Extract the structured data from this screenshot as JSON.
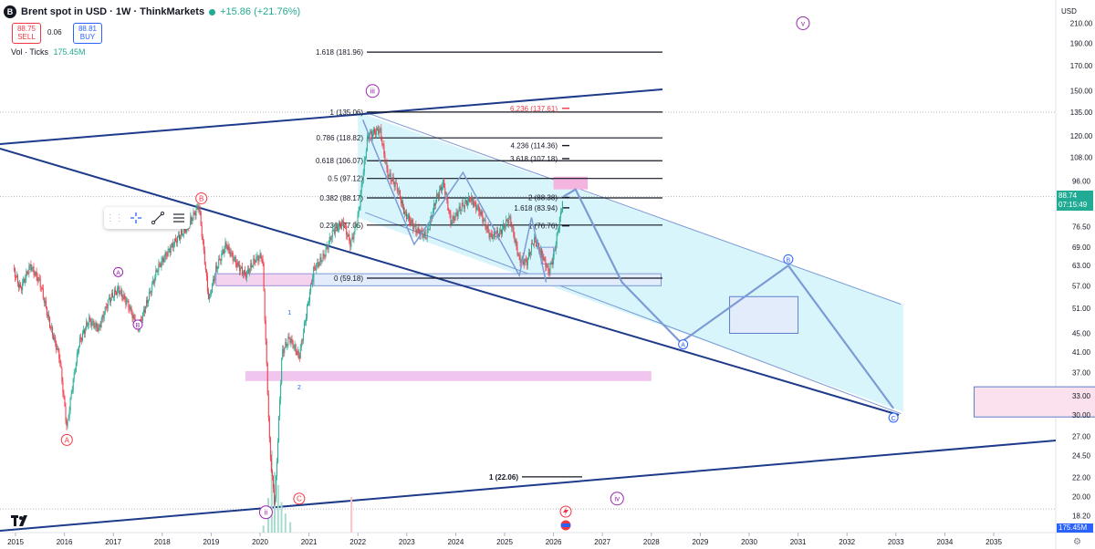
{
  "header": {
    "logo_char": "B",
    "title": "Brent spot in USD · 1W · ThinkMarkets",
    "change": "+15.86 (+21.76%)",
    "sell_price": "88.75",
    "sell_label": "SELL",
    "spread": "0.06",
    "buy_price": "88.81",
    "buy_label": "BUY",
    "vol_label": "Vol · Ticks",
    "vol_value": "175.45M"
  },
  "colors": {
    "up": "#22ab94",
    "down": "#f23645",
    "trendline": "#1e3a8a",
    "channel_fill": "#ccf1fb",
    "channel_line": "#5b7fc9",
    "projection": "#7b9bd4",
    "purple": "#9c27b0",
    "box_pink": "#fbe1ee",
    "box_blue": "#e3ecfb"
  },
  "price_axis": {
    "unit": "USD",
    "ticks": [
      210,
      190,
      170,
      150,
      135,
      120,
      108,
      96,
      86,
      76.5,
      69,
      63,
      57,
      51,
      45,
      41,
      37,
      33,
      30,
      27,
      24.5,
      22,
      20,
      18.2
    ],
    "last_price": "88.74",
    "countdown": "07:15:49",
    "vol_tag": "175.45M"
  },
  "chart_data": {
    "type": "candlestick",
    "symbol": "Brent spot in USD",
    "interval": "1W",
    "x_ticks": [
      "2015",
      "2016",
      "2017",
      "2018",
      "2019",
      "2020",
      "2021",
      "2022",
      "2023",
      "2024",
      "2025",
      "2026",
      "2027",
      "2028",
      "2029",
      "2030",
      "2031",
      "2032",
      "2033",
      "2034",
      "2035"
    ],
    "price_path": [
      [
        2014.95,
        62
      ],
      [
        2015.1,
        56
      ],
      [
        2015.3,
        63
      ],
      [
        2015.5,
        58
      ],
      [
        2015.7,
        47
      ],
      [
        2015.9,
        40
      ],
      [
        2016.05,
        28
      ],
      [
        2016.15,
        34
      ],
      [
        2016.3,
        43
      ],
      [
        2016.5,
        48
      ],
      [
        2016.7,
        46
      ],
      [
        2016.9,
        53
      ],
      [
        2017.1,
        56
      ],
      [
        2017.3,
        52
      ],
      [
        2017.5,
        46
      ],
      [
        2017.7,
        53
      ],
      [
        2017.9,
        62
      ],
      [
        2018.1,
        67
      ],
      [
        2018.3,
        72
      ],
      [
        2018.5,
        76
      ],
      [
        2018.75,
        85
      ],
      [
        2018.95,
        53
      ],
      [
        2019.1,
        62
      ],
      [
        2019.3,
        70
      ],
      [
        2019.5,
        64
      ],
      [
        2019.7,
        60
      ],
      [
        2019.9,
        65
      ],
      [
        2020.05,
        66
      ],
      [
        2020.2,
        25
      ],
      [
        2020.3,
        19
      ],
      [
        2020.45,
        41
      ],
      [
        2020.6,
        44
      ],
      [
        2020.8,
        40
      ],
      [
        2020.95,
        50
      ],
      [
        2021.1,
        62
      ],
      [
        2021.3,
        66
      ],
      [
        2021.5,
        75
      ],
      [
        2021.7,
        78
      ],
      [
        2021.85,
        70
      ],
      [
        2022.0,
        80
      ],
      [
        2022.2,
        120
      ],
      [
        2022.45,
        124
      ],
      [
        2022.6,
        100
      ],
      [
        2022.8,
        93
      ],
      [
        2022.95,
        82
      ],
      [
        2023.2,
        75
      ],
      [
        2023.4,
        73
      ],
      [
        2023.6,
        88
      ],
      [
        2023.75,
        95
      ],
      [
        2023.9,
        78
      ],
      [
        2024.1,
        84
      ],
      [
        2024.3,
        88
      ],
      [
        2024.5,
        82
      ],
      [
        2024.7,
        73
      ],
      [
        2024.9,
        74
      ],
      [
        2025.1,
        80
      ],
      [
        2025.3,
        65
      ],
      [
        2025.45,
        64
      ],
      [
        2025.6,
        72
      ],
      [
        2025.75,
        67
      ],
      [
        2025.9,
        61
      ],
      [
        2026.0,
        66
      ],
      [
        2026.1,
        76
      ],
      [
        2026.2,
        88.74
      ]
    ],
    "fib_retracement": [
      {
        "label": "1.618 (181.96)",
        "price": 181.96
      },
      {
        "label": "1 (135.06)",
        "price": 135.06
      },
      {
        "label": "0.786 (118.82)",
        "price": 118.82
      },
      {
        "label": "0.618 (106.07)",
        "price": 106.07
      },
      {
        "label": "0.5 (97.12)",
        "price": 97.12
      },
      {
        "label": "0.382 (88.17)",
        "price": 88.17
      },
      {
        "label": "0.236 (77.05)",
        "price": 77.05
      },
      {
        "label": "0 (59.18)",
        "price": 59.18
      }
    ],
    "fib_extension": [
      {
        "label": "6.236 (137.61)",
        "price": 137.61,
        "highlight": true
      },
      {
        "label": "4.236 (114.36)",
        "price": 114.36
      },
      {
        "label": "3.618 (107.18)",
        "price": 107.18
      },
      {
        "label": "2 (88.38)",
        "price": 88.38
      },
      {
        "label": "1.618 (83.94)",
        "price": 83.94
      },
      {
        "label": "1 (76.76)",
        "price": 76.76
      }
    ],
    "target_level": {
      "label": "1 (22.06)",
      "price": 22.06
    },
    "wave_labels": [
      {
        "text": "iii",
        "style": "roman"
      },
      {
        "text": "ii",
        "style": "roman"
      },
      {
        "text": "iv",
        "style": "roman"
      },
      {
        "text": "v",
        "style": "roman"
      },
      {
        "text": "B",
        "style": "circle-red"
      },
      {
        "text": "A",
        "style": "circle-red"
      },
      {
        "text": "C",
        "style": "circle-red"
      },
      {
        "text": "A",
        "style": "circle-purple"
      },
      {
        "text": "B",
        "style": "circle-purple"
      },
      {
        "text": "A",
        "style": "circle-blue"
      },
      {
        "text": "B",
        "style": "circle-blue"
      },
      {
        "text": "C",
        "style": "circle-blue"
      },
      {
        "text": "1",
        "style": "plain"
      },
      {
        "text": "2",
        "style": "plain"
      }
    ],
    "projection_path": [
      [
        2026.2,
        88.7
      ],
      [
        2026.45,
        92
      ],
      [
        2027.4,
        58
      ],
      [
        2028.6,
        43
      ],
      [
        2030.8,
        63
      ],
      [
        2032.95,
        31
      ]
    ]
  }
}
